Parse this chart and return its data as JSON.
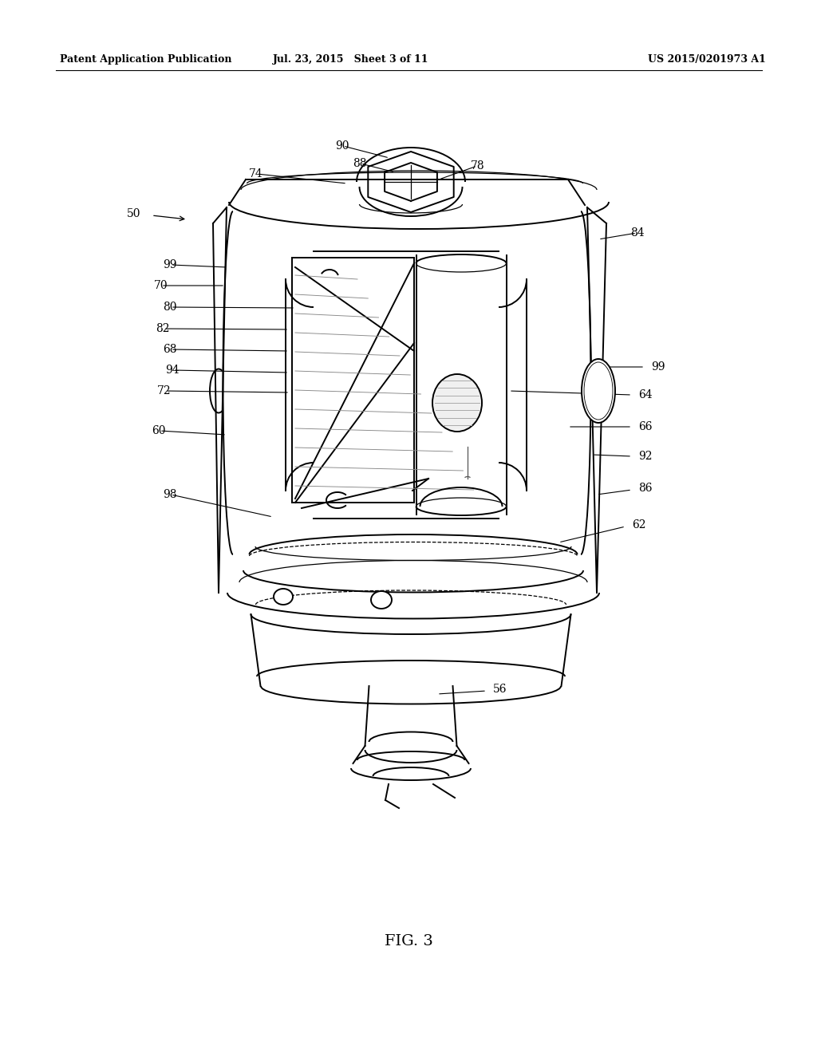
{
  "bg_color": "#ffffff",
  "line_color": "#000000",
  "header_left": "Patent Application Publication",
  "header_mid": "Jul. 23, 2015   Sheet 3 of 11",
  "header_right": "US 2015/0201973 A1",
  "figure_label": "FIG. 3",
  "lw_main": 1.4,
  "lw_thin": 0.9,
  "label_fontsize": 10,
  "header_fontsize": 9
}
